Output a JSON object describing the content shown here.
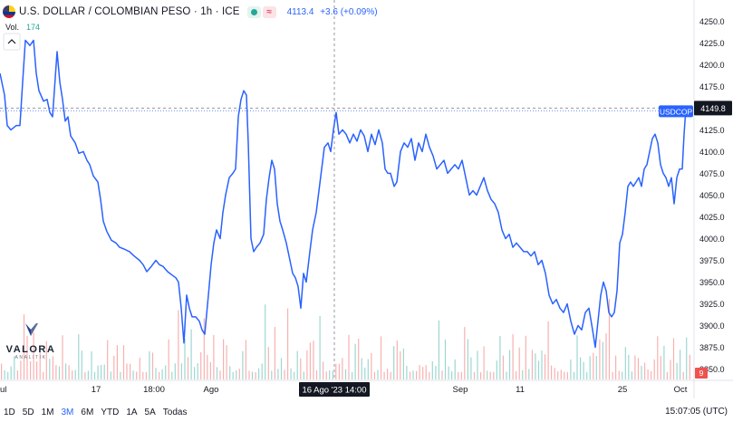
{
  "header": {
    "title": "U.S. DOLLAR / COLOMBIAN PESO · 1h · ICE",
    "market_approx_icon": "≈",
    "quote_last": "4113.4",
    "quote_change": "+3.6 (+0.09%)"
  },
  "volume_indicator": {
    "label": "Vol.",
    "value": "174"
  },
  "crosshair": {
    "time_label": "16 Ago '23  14:00"
  },
  "price_tag": {
    "symbol": "USDCOP",
    "last": "4149.8"
  },
  "volume_tag": "9",
  "toolbar": {
    "ranges": [
      {
        "label": "1D",
        "active": false
      },
      {
        "label": "5D",
        "active": false
      },
      {
        "label": "1M",
        "active": false
      },
      {
        "label": "3M",
        "active": true
      },
      {
        "label": "6M",
        "active": false
      },
      {
        "label": "YTD",
        "active": false
      },
      {
        "label": "1A",
        "active": false
      },
      {
        "label": "5A",
        "active": false
      },
      {
        "label": "Todas",
        "active": false
      }
    ],
    "clock": "15:07:05 (UTC)"
  },
  "logo": {
    "name": "VALORA",
    "sub": "ANALITIK"
  },
  "colors": {
    "line": "#2962ff",
    "vol_up": "#26a69a",
    "vol_down": "#ef5350",
    "tag_bg": "#2962ff",
    "last_bg": "#131722"
  },
  "chart_data": {
    "type": "line",
    "y_axis_ticks": [
      3850,
      3875,
      3900,
      3925,
      3950,
      3975,
      4000,
      4025,
      4050,
      4075,
      4100,
      4125,
      4150,
      4175,
      4200,
      4225,
      4250
    ],
    "ylim": [
      3837,
      4266
    ],
    "x_tick_labels": [
      {
        "label": "ul",
        "x": 0
      },
      {
        "label": "17",
        "x": 106
      },
      {
        "label": "18:00",
        "x": 170
      },
      {
        "label": "Ago",
        "x": 233
      },
      {
        "label": "Sep",
        "x": 508
      },
      {
        "label": "11",
        "x": 574
      },
      {
        "label": "25",
        "x": 687
      },
      {
        "label": "Oct",
        "x": 751
      }
    ],
    "xlim": [
      0,
      765
    ],
    "price": [
      [
        0,
        4190
      ],
      [
        5,
        4165
      ],
      [
        8,
        4130
      ],
      [
        12,
        4125
      ],
      [
        18,
        4130
      ],
      [
        22,
        4130
      ],
      [
        25,
        4180
      ],
      [
        28,
        4228
      ],
      [
        33,
        4222
      ],
      [
        37,
        4228
      ],
      [
        40,
        4190
      ],
      [
        43,
        4170
      ],
      [
        48,
        4158
      ],
      [
        52,
        4160
      ],
      [
        55,
        4145
      ],
      [
        58,
        4140
      ],
      [
        61,
        4185
      ],
      [
        63,
        4215
      ],
      [
        66,
        4180
      ],
      [
        69,
        4160
      ],
      [
        72,
        4135
      ],
      [
        75,
        4140
      ],
      [
        78,
        4118
      ],
      [
        83,
        4110
      ],
      [
        87,
        4098
      ],
      [
        92,
        4100
      ],
      [
        96,
        4090
      ],
      [
        99,
        4085
      ],
      [
        103,
        4072
      ],
      [
        108,
        4065
      ],
      [
        111,
        4045
      ],
      [
        114,
        4020
      ],
      [
        118,
        4008
      ],
      [
        123,
        3998
      ],
      [
        128,
        3995
      ],
      [
        132,
        3990
      ],
      [
        137,
        3988
      ],
      [
        143,
        3985
      ],
      [
        148,
        3980
      ],
      [
        154,
        3975
      ],
      [
        158,
        3970
      ],
      [
        162,
        3962
      ],
      [
        167,
        3968
      ],
      [
        172,
        3975
      ],
      [
        176,
        3970
      ],
      [
        180,
        3968
      ],
      [
        185,
        3962
      ],
      [
        190,
        3958
      ],
      [
        194,
        3955
      ],
      [
        197,
        3950
      ],
      [
        200,
        3920
      ],
      [
        203,
        3880
      ],
      [
        206,
        3935
      ],
      [
        209,
        3920
      ],
      [
        212,
        3910
      ],
      [
        216,
        3910
      ],
      [
        220,
        3905
      ],
      [
        223,
        3895
      ],
      [
        226,
        3890
      ],
      [
        230,
        3935
      ],
      [
        233,
        3970
      ],
      [
        236,
        3995
      ],
      [
        239,
        4010
      ],
      [
        243,
        4000
      ],
      [
        246,
        4030
      ],
      [
        249,
        4050
      ],
      [
        253,
        4070
      ],
      [
        257,
        4075
      ],
      [
        260,
        4080
      ],
      [
        263,
        4140
      ],
      [
        266,
        4160
      ],
      [
        269,
        4170
      ],
      [
        272,
        4165
      ],
      [
        274,
        4110
      ],
      [
        277,
        4000
      ],
      [
        280,
        3985
      ],
      [
        283,
        3990
      ],
      [
        287,
        3995
      ],
      [
        291,
        4005
      ],
      [
        294,
        4045
      ],
      [
        297,
        4070
      ],
      [
        300,
        4090
      ],
      [
        303,
        4080
      ],
      [
        306,
        4040
      ],
      [
        309,
        4020
      ],
      [
        312,
        4010
      ],
      [
        316,
        3995
      ],
      [
        320,
        3975
      ],
      [
        323,
        3960
      ],
      [
        326,
        3955
      ],
      [
        329,
        3945
      ],
      [
        332,
        3920
      ],
      [
        335,
        3960
      ],
      [
        338,
        3950
      ],
      [
        342,
        3985
      ],
      [
        345,
        4010
      ],
      [
        349,
        4030
      ],
      [
        352,
        4055
      ],
      [
        355,
        4080
      ],
      [
        358,
        4105
      ],
      [
        362,
        4110
      ],
      [
        365,
        4100
      ],
      [
        368,
        4125
      ],
      [
        371,
        4145
      ],
      [
        374,
        4120
      ],
      [
        378,
        4125
      ],
      [
        382,
        4120
      ],
      [
        386,
        4110
      ],
      [
        390,
        4120
      ],
      [
        394,
        4112
      ],
      [
        398,
        4125
      ],
      [
        402,
        4118
      ],
      [
        406,
        4100
      ],
      [
        410,
        4120
      ],
      [
        414,
        4108
      ],
      [
        418,
        4125
      ],
      [
        422,
        4110
      ],
      [
        425,
        4080
      ],
      [
        428,
        4075
      ],
      [
        431,
        4075
      ],
      [
        435,
        4060
      ],
      [
        438,
        4065
      ],
      [
        442,
        4100
      ],
      [
        446,
        4110
      ],
      [
        450,
        4105
      ],
      [
        454,
        4115
      ],
      [
        458,
        4090
      ],
      [
        462,
        4110
      ],
      [
        466,
        4100
      ],
      [
        470,
        4120
      ],
      [
        474,
        4105
      ],
      [
        478,
        4095
      ],
      [
        482,
        4080
      ],
      [
        486,
        4085
      ],
      [
        490,
        4090
      ],
      [
        494,
        4075
      ],
      [
        498,
        4080
      ],
      [
        502,
        4085
      ],
      [
        506,
        4080
      ],
      [
        510,
        4090
      ],
      [
        514,
        4070
      ],
      [
        518,
        4050
      ],
      [
        522,
        4055
      ],
      [
        526,
        4050
      ],
      [
        530,
        4060
      ],
      [
        534,
        4070
      ],
      [
        538,
        4055
      ],
      [
        542,
        4045
      ],
      [
        546,
        4040
      ],
      [
        550,
        4030
      ],
      [
        554,
        4010
      ],
      [
        558,
        4000
      ],
      [
        562,
        4005
      ],
      [
        566,
        3990
      ],
      [
        570,
        3995
      ],
      [
        574,
        3990
      ],
      [
        578,
        3985
      ],
      [
        582,
        3985
      ],
      [
        586,
        3980
      ],
      [
        590,
        3985
      ],
      [
        594,
        3970
      ],
      [
        598,
        3975
      ],
      [
        602,
        3960
      ],
      [
        606,
        3935
      ],
      [
        610,
        3925
      ],
      [
        614,
        3930
      ],
      [
        618,
        3920
      ],
      [
        622,
        3915
      ],
      [
        626,
        3925
      ],
      [
        630,
        3905
      ],
      [
        634,
        3890
      ],
      [
        638,
        3900
      ],
      [
        642,
        3895
      ],
      [
        646,
        3915
      ],
      [
        650,
        3920
      ],
      [
        654,
        3895
      ],
      [
        657,
        3875
      ],
      [
        660,
        3905
      ],
      [
        663,
        3935
      ],
      [
        666,
        3950
      ],
      [
        669,
        3940
      ],
      [
        672,
        3915
      ],
      [
        675,
        3910
      ],
      [
        678,
        3915
      ],
      [
        681,
        3940
      ],
      [
        684,
        3995
      ],
      [
        687,
        4005
      ],
      [
        690,
        4030
      ],
      [
        693,
        4060
      ],
      [
        696,
        4065
      ],
      [
        699,
        4060
      ],
      [
        702,
        4065
      ],
      [
        705,
        4070
      ],
      [
        708,
        4060
      ],
      [
        711,
        4080
      ],
      [
        714,
        4085
      ],
      [
        717,
        4100
      ],
      [
        720,
        4115
      ],
      [
        723,
        4120
      ],
      [
        726,
        4110
      ],
      [
        729,
        4085
      ],
      [
        732,
        4075
      ],
      [
        735,
        4070
      ],
      [
        738,
        4060
      ],
      [
        741,
        4070
      ],
      [
        744,
        4040
      ],
      [
        747,
        4070
      ],
      [
        750,
        4080
      ],
      [
        753,
        4080
      ],
      [
        755,
        4120
      ],
      [
        757,
        4150
      ]
    ],
    "volume": [
      {
        "x0": 0,
        "x1": 765,
        "step": 3.55,
        "max": 160
      }
    ],
    "crosshair_price": 4150,
    "crosshair_x": 369
  }
}
